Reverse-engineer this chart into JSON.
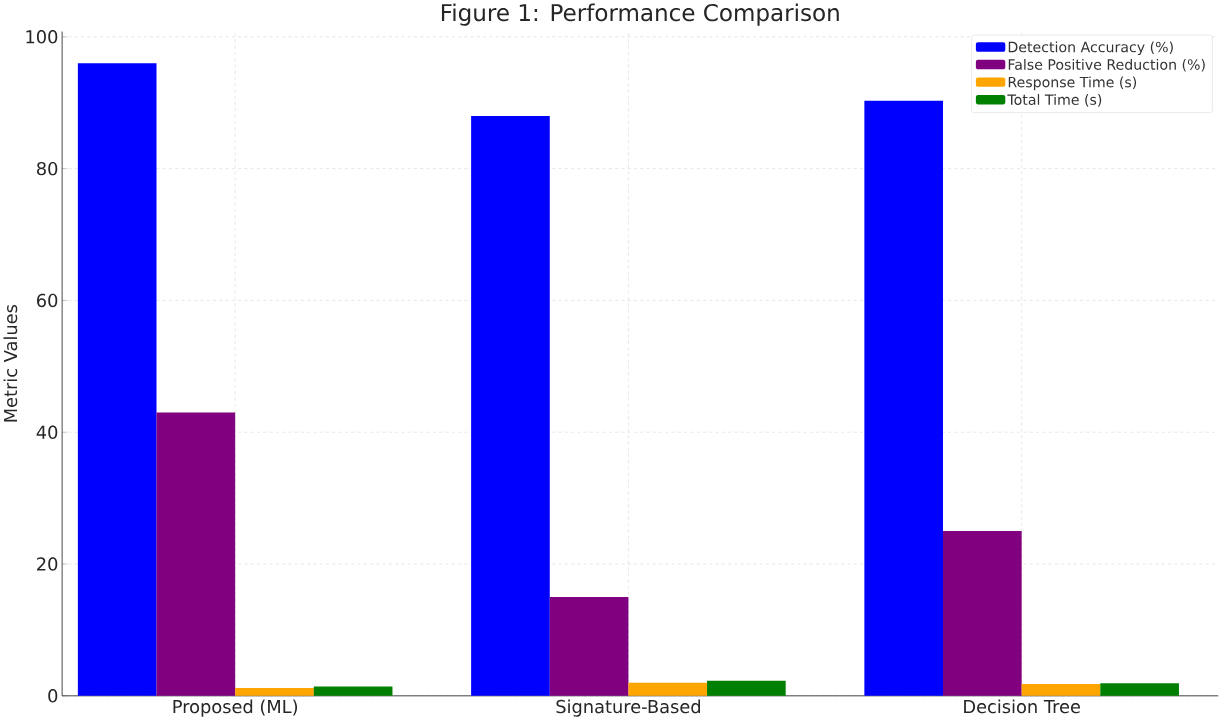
{
  "chart_data": {
    "type": "bar",
    "title": "Figure 1: Performance Comparison",
    "ylabel": "Metric Values",
    "categories": [
      "Proposed (ML)",
      "Signature-Based",
      "Decision Tree"
    ],
    "series": [
      {
        "name": "Detection Accuracy (%)",
        "color": "#0000ff",
        "values": [
          96,
          88,
          90.3
        ]
      },
      {
        "name": "False Positive Reduction (%)",
        "color": "#800080",
        "values": [
          43,
          15,
          25
        ]
      },
      {
        "name": "Response Time (s)",
        "color": "#ffa500",
        "values": [
          1.2,
          2.0,
          1.8
        ]
      },
      {
        "name": "Total Time (s)",
        "color": "#008000",
        "values": [
          1.4,
          2.3,
          1.9
        ]
      }
    ],
    "ylim": [
      0,
      100.8
    ],
    "yticks": [
      0,
      20,
      40,
      60,
      80,
      100
    ],
    "grid": true,
    "legend": "top right"
  }
}
